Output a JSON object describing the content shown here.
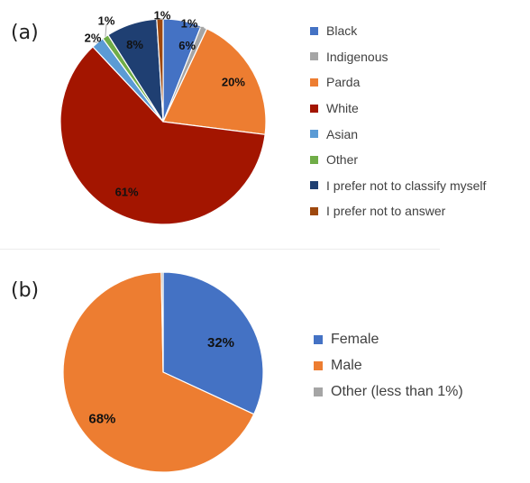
{
  "chart_data": [
    {
      "type": "pie",
      "panel_label": "(a)",
      "title": "",
      "slices": [
        {
          "label": "Black",
          "value": 6,
          "display": "6%",
          "color": "#4472c4"
        },
        {
          "label": "Indigenous",
          "value": 1,
          "display": "1%",
          "color": "#a5a5a5"
        },
        {
          "label": "Parda",
          "value": 20,
          "display": "20%",
          "color": "#ed7d31"
        },
        {
          "label": "White",
          "value": 61,
          "display": "61%",
          "color": "#a31500"
        },
        {
          "label": "Asian",
          "value": 2,
          "display": "2%",
          "color": "#5b9bd5"
        },
        {
          "label": "Other",
          "value": 1,
          "display": "1%",
          "color": "#70ad47"
        },
        {
          "label": "I prefer not to classify myself",
          "value": 8,
          "display": "8%",
          "color": "#1f3f72"
        },
        {
          "label": "I prefer not to answer",
          "value": 1,
          "display": "1%",
          "color": "#9e480e"
        }
      ],
      "legend_position": "right"
    },
    {
      "type": "pie",
      "panel_label": "(b)",
      "title": "",
      "slices": [
        {
          "label": "Female",
          "value": 32,
          "display": "32%",
          "color": "#4472c4"
        },
        {
          "label": "Male",
          "value": 68,
          "display": "68%",
          "color": "#ed7d31"
        },
        {
          "label": "Other (less than 1%)",
          "value": 0.3,
          "display": "",
          "color": "#a5a5a5"
        }
      ],
      "legend_position": "right"
    }
  ]
}
